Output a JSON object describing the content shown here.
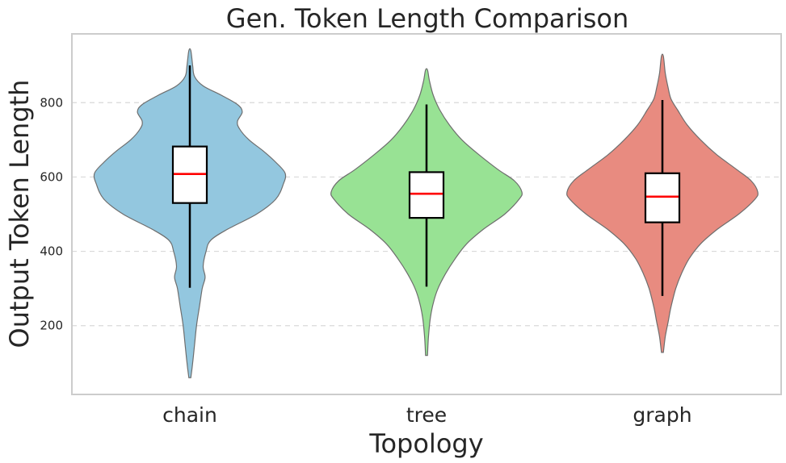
{
  "chart_data": {
    "type": "violin",
    "title": "Gen. Token Length Comparison",
    "xlabel": "Topology",
    "ylabel": "Output Token Length",
    "categories": [
      "chain",
      "tree",
      "graph"
    ],
    "ylim": [
      15,
      985
    ],
    "yticks": [
      200,
      400,
      600,
      800
    ],
    "grid": "y-dashed",
    "colors": {
      "chain": "#93c7df",
      "tree": "#98e294",
      "graph": "#e88b80",
      "outline": "#6e6e6e",
      "median": "#ff0000",
      "box": "#000000",
      "grid": "#d9d9d9",
      "frame": "#cccccc"
    },
    "series": [
      {
        "name": "chain",
        "min": 60,
        "max": 940,
        "whisker_low": 302,
        "whisker_high": 900,
        "q1": 530,
        "median": 608,
        "q3": 682,
        "density": [
          [
            60,
            0.01
          ],
          [
            100,
            0.03
          ],
          [
            150,
            0.05
          ],
          [
            200,
            0.07
          ],
          [
            250,
            0.1
          ],
          [
            300,
            0.13
          ],
          [
            330,
            0.16
          ],
          [
            360,
            0.14
          ],
          [
            400,
            0.17
          ],
          [
            430,
            0.22
          ],
          [
            460,
            0.4
          ],
          [
            500,
            0.7
          ],
          [
            540,
            0.9
          ],
          [
            580,
            0.98
          ],
          [
            610,
            1.0
          ],
          [
            640,
            0.9
          ],
          [
            670,
            0.77
          ],
          [
            700,
            0.62
          ],
          [
            730,
            0.52
          ],
          [
            750,
            0.5
          ],
          [
            775,
            0.55
          ],
          [
            795,
            0.5
          ],
          [
            820,
            0.33
          ],
          [
            845,
            0.14
          ],
          [
            870,
            0.05
          ],
          [
            900,
            0.03
          ],
          [
            940,
            0.01
          ]
        ]
      },
      {
        "name": "tree",
        "min": 120,
        "max": 888,
        "whisker_low": 305,
        "whisker_high": 795,
        "q1": 490,
        "median": 555,
        "q3": 613,
        "density": [
          [
            120,
            0.01
          ],
          [
            170,
            0.02
          ],
          [
            220,
            0.04
          ],
          [
            260,
            0.07
          ],
          [
            300,
            0.12
          ],
          [
            340,
            0.2
          ],
          [
            380,
            0.3
          ],
          [
            420,
            0.42
          ],
          [
            460,
            0.6
          ],
          [
            500,
            0.82
          ],
          [
            540,
            0.97
          ],
          [
            560,
            1.0
          ],
          [
            590,
            0.92
          ],
          [
            620,
            0.75
          ],
          [
            660,
            0.55
          ],
          [
            700,
            0.37
          ],
          [
            740,
            0.24
          ],
          [
            780,
            0.14
          ],
          [
            820,
            0.07
          ],
          [
            860,
            0.03
          ],
          [
            888,
            0.01
          ]
        ]
      },
      {
        "name": "graph",
        "min": 128,
        "max": 925,
        "whisker_low": 280,
        "whisker_high": 807,
        "q1": 478,
        "median": 547,
        "q3": 610,
        "density": [
          [
            128,
            0.01
          ],
          [
            170,
            0.03
          ],
          [
            210,
            0.06
          ],
          [
            250,
            0.09
          ],
          [
            300,
            0.14
          ],
          [
            340,
            0.2
          ],
          [
            380,
            0.28
          ],
          [
            420,
            0.4
          ],
          [
            460,
            0.58
          ],
          [
            500,
            0.8
          ],
          [
            540,
            0.97
          ],
          [
            560,
            1.0
          ],
          [
            590,
            0.93
          ],
          [
            620,
            0.78
          ],
          [
            660,
            0.57
          ],
          [
            700,
            0.4
          ],
          [
            740,
            0.26
          ],
          [
            780,
            0.16
          ],
          [
            810,
            0.09
          ],
          [
            840,
            0.06
          ],
          [
            880,
            0.03
          ],
          [
            925,
            0.01
          ]
        ]
      }
    ]
  }
}
